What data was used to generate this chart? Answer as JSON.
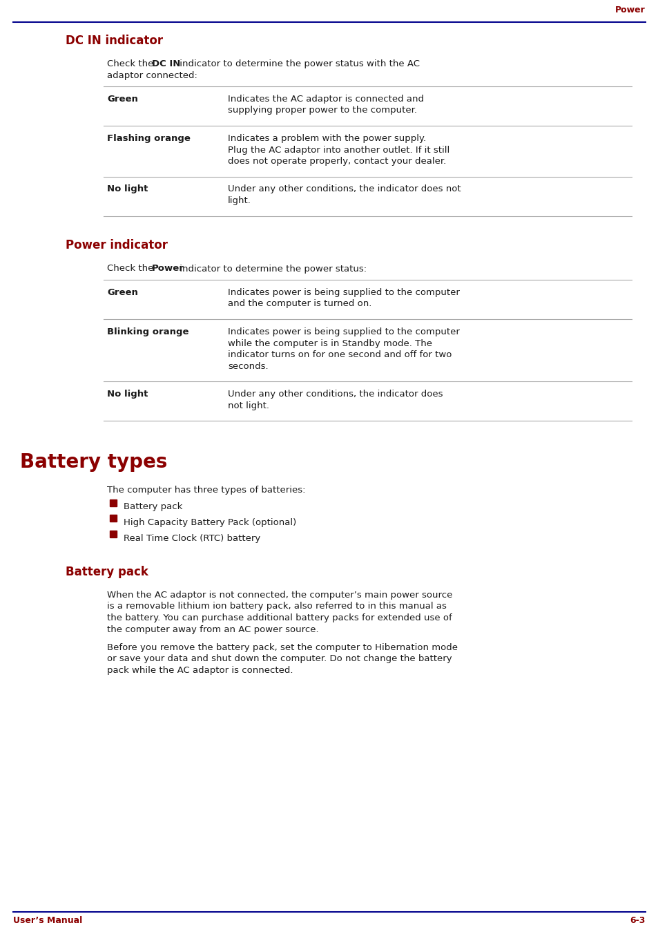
{
  "page_header_text": "Power",
  "dark_red": "#8B0000",
  "dark_blue": "#00008B",
  "text_color": "#1a1a1a",
  "table_line_color": "#aaaaaa",
  "bg_color": "#FFFFFF",
  "footer_left": "User’s Manual",
  "footer_right": "6-3",
  "section1_title": "DC IN indicator",
  "section1_intro_parts": [
    {
      "text": "Check the ",
      "bold": false
    },
    {
      "text": "DC IN",
      "bold": true
    },
    {
      "text": " indicator to determine the power status with the AC",
      "bold": false
    }
  ],
  "section1_intro_line2": "adaptor connected:",
  "section1_rows": [
    {
      "label": "Green",
      "desc_lines": [
        "Indicates the AC adaptor is connected and",
        "supplying proper power to the computer."
      ]
    },
    {
      "label": "Flashing orange",
      "desc_lines": [
        "Indicates a problem with the power supply.",
        "Plug the AC adaptor into another outlet. If it still",
        "does not operate properly, contact your dealer."
      ]
    },
    {
      "label": "No light",
      "desc_lines": [
        "Under any other conditions, the indicator does not",
        "light."
      ]
    }
  ],
  "section2_title": "Power indicator",
  "section2_intro_parts": [
    {
      "text": "Check the ",
      "bold": false
    },
    {
      "text": "Power",
      "bold": true
    },
    {
      "text": " indicator to determine the power status:",
      "bold": false
    }
  ],
  "section2_rows": [
    {
      "label": "Green",
      "desc_lines": [
        "Indicates power is being supplied to the computer",
        "and the computer is turned on."
      ]
    },
    {
      "label": "Blinking orange",
      "desc_lines": [
        "Indicates power is being supplied to the computer",
        "while the computer is in Standby mode. The",
        "indicator turns on for one second and off for two",
        "seconds."
      ]
    },
    {
      "label": "No light",
      "desc_lines": [
        "Under any other conditions, the indicator does",
        "not light."
      ]
    }
  ],
  "section3_title": "Battery types",
  "section3_intro": "The computer has three types of batteries:",
  "section3_bullets": [
    "Battery pack",
    "High Capacity Battery Pack (optional)",
    "Real Time Clock (RTC) battery"
  ],
  "section4_title": "Battery pack",
  "section4_para1_lines": [
    "When the AC adaptor is not connected, the computer’s main power source",
    "is a removable lithium ion battery pack, also referred to in this manual as",
    "the battery. You can purchase additional battery packs for extended use of",
    "the computer away from an AC power source."
  ],
  "section4_para2_lines": [
    "Before you remove the battery pack, set the computer to Hibernation mode",
    "or save your data and shut down the computer. Do not change the battery",
    "pack while the AC adaptor is connected."
  ]
}
